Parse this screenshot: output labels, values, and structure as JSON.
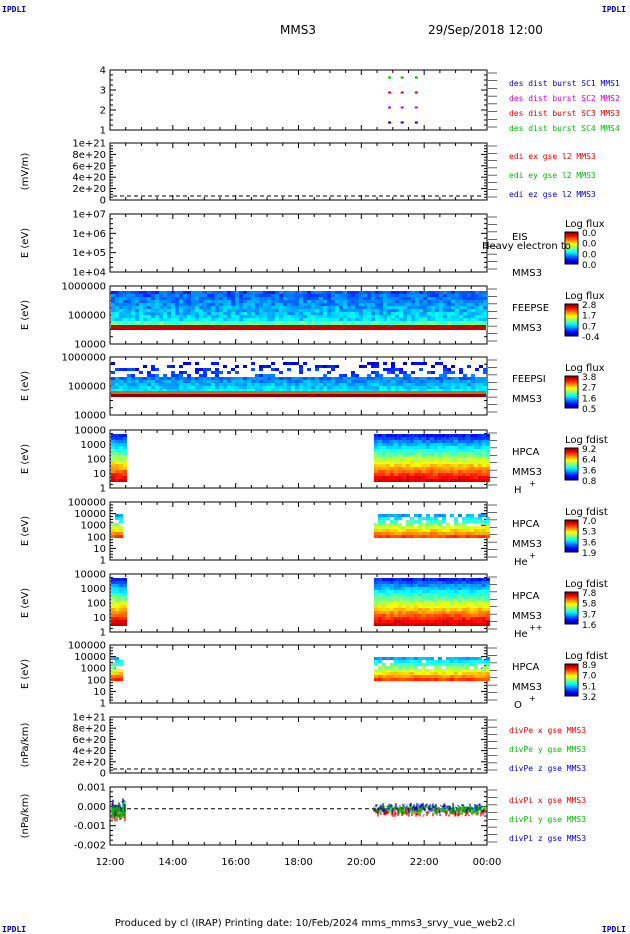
{
  "corners": {
    "tl": "IPDLI",
    "tr": "IPDLI",
    "bl": "IPDLI",
    "br": "IPDLI"
  },
  "header": {
    "spacecraft": "MMS3",
    "date": "29/Sep/2018 12:00"
  },
  "footer": {
    "text": "Produced by cl (IRAP)   Printing date: 10/Feb/2024   mms_mms3_srvy_vue_web2.cl"
  },
  "chart_data": {
    "type": "stacked time-series (line + spectrogram panels)",
    "x": {
      "ticks": [
        "12:00",
        "14:00",
        "16:00",
        "18:00",
        "20:00",
        "22:00",
        "00:00"
      ],
      "range_hours": [
        12,
        24
      ]
    },
    "panels": [
      {
        "id": "burst",
        "type": "scatter",
        "yticks": [
          "4",
          "3",
          "2",
          "1"
        ],
        "ylim": [
          0.5,
          4.5
        ],
        "legend": [
          {
            "label": "des dist burst SC1 MMS1",
            "color": "#0000cc"
          },
          {
            "label": "des dist burst SC2 MMS2",
            "color": "#cc00cc"
          },
          {
            "label": "des dist burst SC3 MMS3",
            "color": "#dd0000"
          },
          {
            "label": "des dist burst SC4 MMS4",
            "color": "#00bb00"
          }
        ],
        "series": [
          {
            "level": 4,
            "times": [
              20.9,
              21.3,
              21.75
            ],
            "color": "#00bb00"
          },
          {
            "level": 3,
            "times": [
              20.9,
              21.3,
              21.75
            ],
            "color": "#dd0000"
          },
          {
            "level": 2,
            "times": [
              20.9,
              21.3,
              21.75
            ],
            "color": "#cc00cc"
          },
          {
            "level": 1,
            "times": [
              20.9,
              21.3,
              21.75
            ],
            "color": "#0000cc"
          }
        ]
      },
      {
        "id": "edi",
        "type": "line",
        "ylabel": "(mV/m)",
        "yticks": [
          "1e+21",
          "8e+20",
          "6e+20",
          "4e+20",
          "2e+20",
          "0"
        ],
        "ylim": [
          0,
          1e+21
        ],
        "legend": [
          {
            "label": "edi ex gse l2 MMS3",
            "color": "#dd0000"
          },
          {
            "label": "edi ey gse l2 MMS3",
            "color": "#00bb00"
          },
          {
            "label": "edi ez gse l2 MMS3",
            "color": "#0000cc"
          }
        ]
      },
      {
        "id": "eis",
        "type": "heatmap",
        "ylabel": "E (eV)",
        "yticks": [
          "1e+07",
          "1e+06",
          "1e+05",
          "1e+04"
        ],
        "labels": [
          "EIS",
          "MMS3"
        ],
        "overlay": "Heavy electron to",
        "cbar": {
          "title": "Log flux",
          "ticks": [
            "0.0",
            "0.0",
            "0.0",
            "0.0"
          ]
        }
      },
      {
        "id": "feepse",
        "type": "heatmap",
        "ylabel": "E (eV)",
        "yticks": [
          "1000000",
          "100000",
          "10000"
        ],
        "labels": [
          "FEEPSE",
          "MMS3"
        ],
        "cbar": {
          "title": "Log flux",
          "ticks": [
            "2.8",
            "1.7",
            "0.7",
            "-0.4"
          ]
        }
      },
      {
        "id": "feepsi",
        "type": "heatmap",
        "ylabel": "E (eV)",
        "yticks": [
          "1000000",
          "100000",
          "10000"
        ],
        "labels": [
          "FEEPSI",
          "MMS3"
        ],
        "cbar": {
          "title": "Log flux",
          "ticks": [
            "3.8",
            "2.7",
            "1.6",
            "0.5"
          ]
        }
      },
      {
        "id": "hpca_h",
        "type": "heatmap",
        "ylabel": "E (eV)",
        "yticks": [
          "10000",
          "1000",
          "100",
          "10",
          "1"
        ],
        "labels": [
          "HPCA",
          "MMS3"
        ],
        "species": "H",
        "charge": "+",
        "cbar": {
          "title": "Log fdist",
          "ticks": [
            "9.2",
            "6.4",
            "3.6",
            "0.8"
          ]
        }
      },
      {
        "id": "hpca_he",
        "type": "heatmap",
        "ylabel": "E (eV)",
        "yticks": [
          "100000",
          "10000",
          "1000",
          "100",
          "10",
          "1"
        ],
        "labels": [
          "HPCA",
          "MMS3"
        ],
        "species": "He",
        "charge": "+",
        "cbar": {
          "title": "Log fdist",
          "ticks": [
            "7.0",
            "5.3",
            "3.6",
            "1.9"
          ]
        }
      },
      {
        "id": "hpca_hepp",
        "type": "heatmap",
        "ylabel": "E (eV)",
        "yticks": [
          "10000",
          "1000",
          "100",
          "10",
          "1"
        ],
        "labels": [
          "HPCA",
          "MMS3"
        ],
        "species": "He",
        "charge": "++",
        "cbar": {
          "title": "Log fdist",
          "ticks": [
            "7.8",
            "5.8",
            "3.7",
            "1.6"
          ]
        }
      },
      {
        "id": "hpca_o",
        "type": "heatmap",
        "ylabel": "E (eV)",
        "yticks": [
          "100000",
          "10000",
          "1000",
          "100",
          "10",
          "1"
        ],
        "labels": [
          "HPCA",
          "MMS3"
        ],
        "species": "O",
        "charge": "+",
        "cbar": {
          "title": "Log fdist",
          "ticks": [
            "8.9",
            "7.0",
            "5.1",
            "3.2"
          ]
        }
      },
      {
        "id": "divpe",
        "type": "line",
        "ylabel": "(nPa/km)",
        "yticks": [
          "1e+21",
          "8e+20",
          "6e+20",
          "4e+20",
          "2e+20",
          "0"
        ],
        "ylim": [
          0,
          1e+21
        ],
        "legend": [
          {
            "label": "divPe x gse MMS3",
            "color": "#dd0000"
          },
          {
            "label": "divPe y gse MMS3",
            "color": "#00bb00"
          },
          {
            "label": "divPe z gse MMS3",
            "color": "#0000cc"
          }
        ]
      },
      {
        "id": "divpi",
        "type": "line",
        "ylabel": "(nPa/km)",
        "yticks": [
          "0.001",
          "0.000",
          "-0.001",
          "-0.002"
        ],
        "ylim": [
          -0.0025,
          0.0015
        ],
        "legend": [
          {
            "label": "divPi x gse MMS3",
            "color": "#dd0000"
          },
          {
            "label": "divPi y gse MMS3",
            "color": "#00bb00"
          },
          {
            "label": "divPi z gse MMS3",
            "color": "#0000cc"
          }
        ]
      }
    ]
  }
}
